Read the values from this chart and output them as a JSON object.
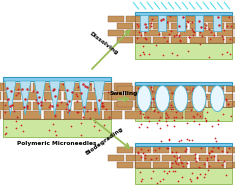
{
  "fig_width": 2.35,
  "fig_height": 1.89,
  "dpi": 100,
  "bg_color": "#ffffff",
  "brick_color": "#c4935a",
  "brick_edge": "#8B5E3C",
  "skin_green": "#cce8a0",
  "skin_green_edge": "#7aaa3a",
  "needle_fill": "#b8e0f0",
  "needle_edge": "#4ab0d0",
  "patch_fill": "#88ccee",
  "patch_edge": "#3399bb",
  "dot_color": "#cc2222",
  "arrow_color": "#99bb55",
  "text_dissolving": "Dissolving",
  "text_swelling": "Swelling",
  "text_biodegrading": "Biodegrading",
  "text_title": "Polymeric Microneedles",
  "swollen_fill": "#e8f6ff",
  "swollen_edge": "#4ab0d0",
  "light_color": "#55ddee"
}
